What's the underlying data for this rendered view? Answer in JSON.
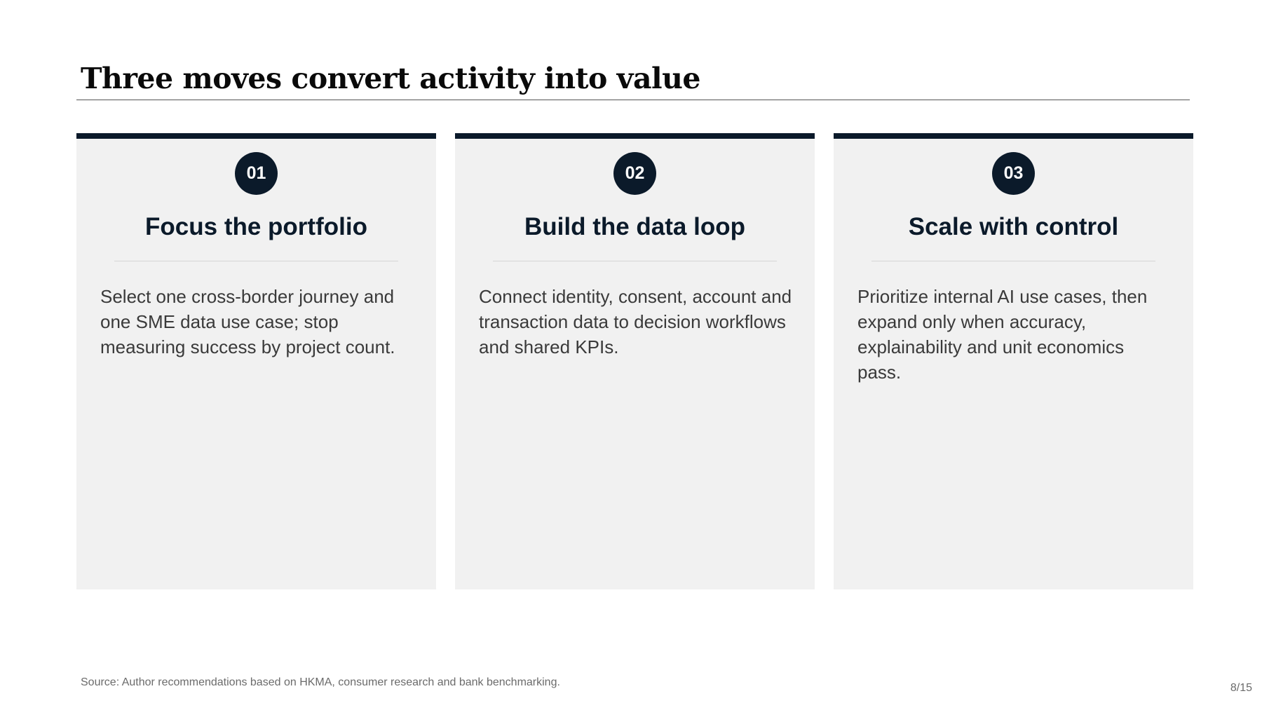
{
  "slide": {
    "title": "Three moves convert activity into value",
    "cards": [
      {
        "number": "01",
        "heading": "Focus the portfolio",
        "text": "Select one cross-border journey and one SME data use case; stop measuring success by project count."
      },
      {
        "number": "02",
        "heading": "Build the data loop",
        "text": "Connect identity, consent, account and transaction data to decision workflows and shared KPIs."
      },
      {
        "number": "03",
        "heading": "Scale with control",
        "text": "Prioritize internal AI use cases, then expand only when accuracy, explainability and unit economics pass."
      }
    ],
    "source": "Source: Author recommendations based on HKMA, consumer research and bank benchmarking.",
    "page_number": "8/15"
  },
  "colors": {
    "accent_navy": "#0b1a2a",
    "card_background": "#f1f1f1",
    "body_text": "#3a3a3a",
    "muted_text": "#6b6b6b"
  }
}
